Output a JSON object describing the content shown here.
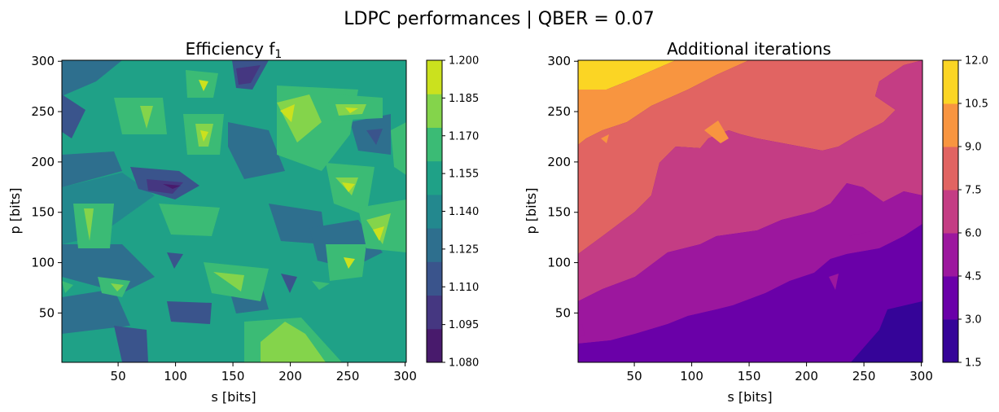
{
  "figure": {
    "suptitle": "LDPC performances | QBER = 0.07"
  },
  "chart_data": [
    {
      "type": "contour",
      "title": "Efficiency f",
      "title_subscript": "1",
      "xlabel": "s [bits]",
      "ylabel": "p [bits]",
      "x_ticks": [
        50,
        100,
        150,
        200,
        250,
        300
      ],
      "y_ticks": [
        50,
        100,
        150,
        200,
        250,
        300
      ],
      "xlim": [
        1,
        301
      ],
      "ylim": [
        1,
        301
      ],
      "colorbar": {
        "levels": [
          1.08,
          1.095,
          1.11,
          1.125,
          1.14,
          1.155,
          1.17,
          1.185,
          1.2
        ],
        "tick_labels": [
          "1.080",
          "1.095",
          "1.110",
          "1.125",
          "1.140",
          "1.155",
          "1.170",
          "1.185",
          "1.200"
        ],
        "colors": [
          "#481a6c",
          "#453781",
          "#3a548c",
          "#2e6f8e",
          "#23888e",
          "#1fa187",
          "#3bbb75",
          "#84d44b",
          "#cbe11e"
        ]
      }
    },
    {
      "type": "contour",
      "title": "Additional iterations",
      "xlabel": "s [bits]",
      "ylabel": "p [bits]",
      "x_ticks": [
        50,
        100,
        150,
        200,
        250,
        300
      ],
      "y_ticks": [
        50,
        100,
        150,
        200,
        250,
        300
      ],
      "xlim": [
        1,
        301
      ],
      "ylim": [
        1,
        301
      ],
      "colorbar": {
        "levels": [
          1.5,
          3.0,
          4.5,
          6.0,
          7.5,
          9.0,
          10.5,
          12.0
        ],
        "tick_labels": [
          "1.5",
          "3.0",
          "4.5",
          "6.0",
          "7.5",
          "9.0",
          "10.5",
          "12.0"
        ],
        "colors": [
          "#350498",
          "#6a00a8",
          "#9c179e",
          "#c43d84",
          "#e16462",
          "#f89540",
          "#fbd524"
        ]
      }
    }
  ]
}
